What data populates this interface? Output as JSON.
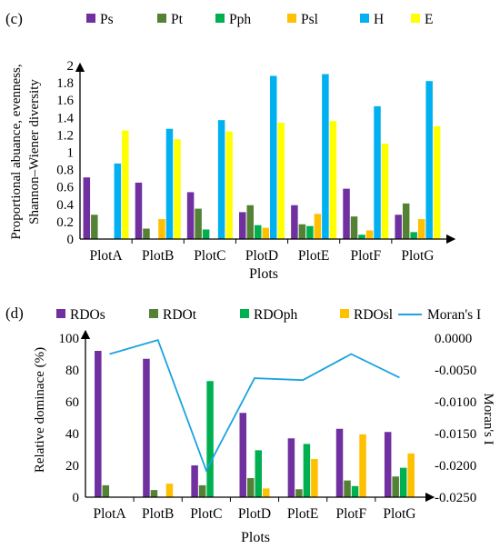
{
  "chart_data": [
    {
      "panel_label": "(c)",
      "type": "bar",
      "categories": [
        "PlotA",
        "PlotB",
        "PlotC",
        "PlotD",
        "PlotE",
        "PlotF",
        "PlotG"
      ],
      "series": [
        {
          "name": "Ps",
          "color": "#7030a0",
          "values": [
            0.71,
            0.65,
            0.54,
            0.31,
            0.39,
            0.58,
            0.28
          ]
        },
        {
          "name": "Pt",
          "color": "#548235",
          "values": [
            0.28,
            0.12,
            0.35,
            0.39,
            0.17,
            0.26,
            0.41
          ]
        },
        {
          "name": "Pph",
          "color": "#00b050",
          "values": [
            0.0,
            0.0,
            0.11,
            0.16,
            0.15,
            0.05,
            0.08
          ]
        },
        {
          "name": "Psl",
          "color": "#ffc000",
          "values": [
            0.0,
            0.23,
            0.0,
            0.13,
            0.29,
            0.1,
            0.23
          ]
        },
        {
          "name": "H",
          "color": "#00b0f0",
          "values": [
            0.87,
            1.27,
            1.37,
            1.88,
            1.9,
            1.53,
            1.82
          ]
        },
        {
          "name": "E",
          "color": "#ffff00",
          "values": [
            1.25,
            1.15,
            1.24,
            1.34,
            1.36,
            1.1,
            1.3
          ]
        }
      ],
      "xlabel": "Plots",
      "ylabel_lines": [
        "Proportional abuance, evenness,",
        "Shannon–Wiener diversity"
      ],
      "ylim": [
        0,
        2
      ],
      "yticks": [
        "0",
        "0.2",
        "0.4",
        "0.6",
        "0.8",
        "1",
        "1.2",
        "1.4",
        "1.6",
        "1.8",
        "2"
      ],
      "legend": "top"
    },
    {
      "panel_label": "(d)",
      "type": "bar",
      "categories": [
        "PlotA",
        "PlotB",
        "PlotC",
        "PlotD",
        "PlotE",
        "PlotF",
        "PlotG"
      ],
      "series": [
        {
          "name": "RDOs",
          "color": "#7030a0",
          "values": [
            92,
            87,
            20,
            53,
            37,
            43,
            41
          ]
        },
        {
          "name": "RDOt",
          "color": "#548235",
          "values": [
            7.5,
            4.5,
            7.5,
            12,
            5,
            10.5,
            13
          ]
        },
        {
          "name": "RDOph",
          "color": "#00b050",
          "values": [
            0,
            0,
            73,
            29.5,
            33.5,
            7,
            18.5
          ]
        },
        {
          "name": "RDOsl",
          "color": "#ffc000",
          "values": [
            0,
            8.5,
            0,
            5.5,
            24,
            39.5,
            27.5
          ]
        }
      ],
      "line_series": {
        "name": "Moran's I",
        "color": "#1aa3e0",
        "values": [
          -0.0025,
          -0.0003,
          -0.0208,
          -0.0063,
          -0.0066,
          -0.0025,
          -0.0062
        ]
      },
      "xlabel": "Plots",
      "ylabel": "Relative dominace (%)",
      "ylim": [
        0,
        100
      ],
      "yticks": [
        "0",
        "20",
        "40",
        "60",
        "80",
        "100"
      ],
      "y2label": "Moran's I",
      "y2lim": [
        -0.025,
        0
      ],
      "y2ticks": [
        "0.0000",
        "-0.0050",
        "-0.0100",
        "-0.0150",
        "-0.0200",
        "-0.0250"
      ],
      "legend": "top"
    }
  ]
}
